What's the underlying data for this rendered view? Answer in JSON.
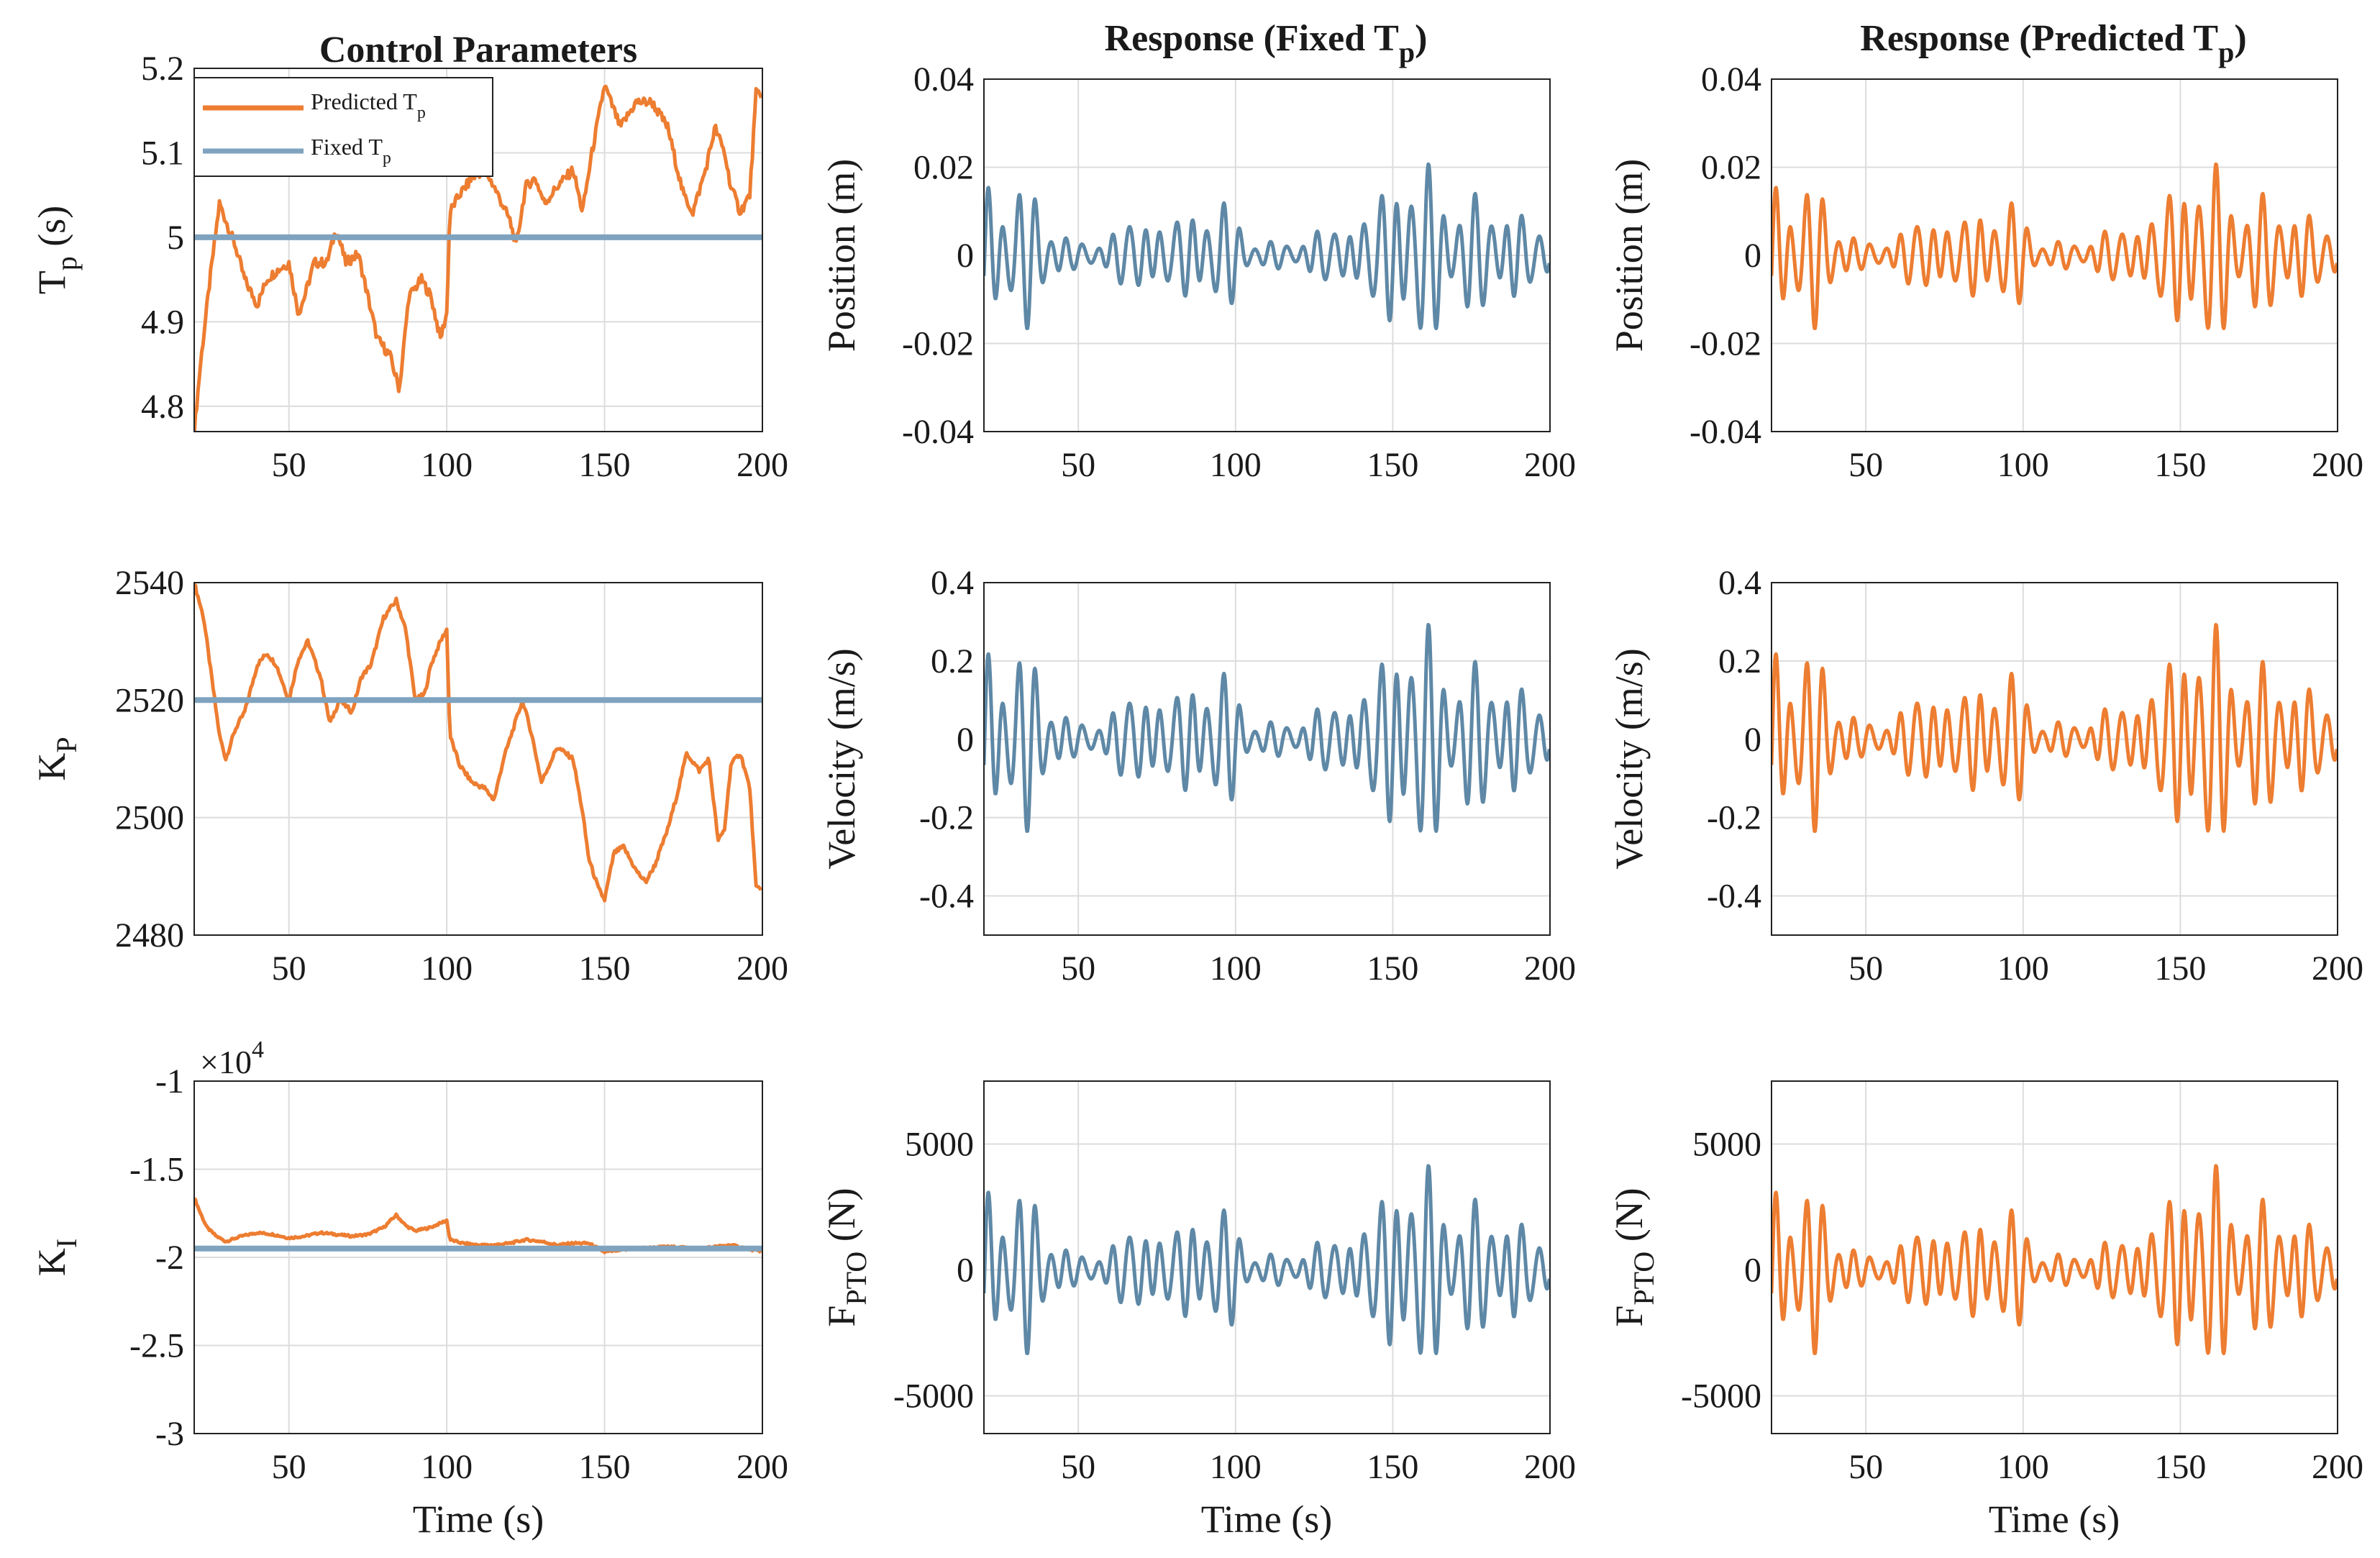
{
  "colors": {
    "predicted": "#ED7D31",
    "fixed": "#5E88A6",
    "fixed_line": "#7FA3BF",
    "grid": "#DCDCDC",
    "axis": "#222222"
  },
  "columns": {
    "col0_title": "Control Parameters",
    "col1_title_main": "Response (Fixed T",
    "col1_title_sub": "p",
    "col1_title_end": ")",
    "col2_title_main": "Response (Predicted T",
    "col2_title_sub": "p",
    "col2_title_end": ")"
  },
  "xlabel": "Time (s)",
  "legend": {
    "predicted_main": "Predicted T",
    "predicted_sub": "p",
    "fixed_main": "Fixed T",
    "fixed_sub": "p"
  },
  "multiplier": {
    "base": "×10",
    "exp": "4"
  },
  "chart_data": [
    {
      "id": "tp",
      "type": "line",
      "ylabel_main": "T",
      "ylabel_sub": "p",
      "ylabel_rest": " (s)",
      "xlim": [
        20,
        200
      ],
      "ylim": [
        4.77,
        5.2
      ],
      "yticks": [
        "4.8",
        "4.9",
        "5",
        "5.1",
        "5.2"
      ],
      "ytick_values": [
        4.8,
        4.9,
        5.0,
        5.1,
        5.2
      ],
      "xticks": [
        "50",
        "100",
        "150",
        "200"
      ],
      "xtick_values": [
        50,
        100,
        150,
        200
      ],
      "series": [
        {
          "name": "Predicted Tp",
          "color": "predicted",
          "amp_noise": 0.006,
          "x": [
            20,
            22,
            25,
            28,
            30,
            33,
            36,
            40,
            43,
            46,
            50,
            53,
            55,
            58,
            62,
            65,
            68,
            72,
            75,
            78,
            82,
            85,
            88,
            92,
            95,
            98,
            100,
            101,
            104,
            108,
            112,
            115,
            120,
            122,
            125,
            128,
            131,
            135,
            140,
            143,
            146,
            150,
            155,
            160,
            165,
            170,
            175,
            178,
            182,
            185,
            188,
            190,
            193,
            196,
            198,
            200
          ],
          "y": [
            4.77,
            4.85,
            4.95,
            5.04,
            5.02,
            4.99,
            4.95,
            4.92,
            4.95,
            4.96,
            4.97,
            4.91,
            4.93,
            4.97,
            4.97,
            5.01,
            4.97,
            4.98,
            4.93,
            4.88,
            4.86,
            4.82,
            4.93,
            4.95,
            4.93,
            4.88,
            4.91,
            5.03,
            5.05,
            5.07,
            5.08,
            5.06,
            5.02,
            4.99,
            5.06,
            5.07,
            5.04,
            5.06,
            5.08,
            5.03,
            5.1,
            5.18,
            5.13,
            5.16,
            5.16,
            5.13,
            5.05,
            5.03,
            5.08,
            5.13,
            5.1,
            5.06,
            5.03,
            5.05,
            5.17,
            5.17
          ]
        },
        {
          "name": "Fixed Tp",
          "color": "fixed_line",
          "x": [
            20,
            200
          ],
          "y": [
            5.0,
            5.0
          ]
        }
      ]
    },
    {
      "id": "kp",
      "type": "line",
      "ylabel_main": "K",
      "ylabel_sub": "P",
      "ylabel_rest": "",
      "xlim": [
        20,
        200
      ],
      "ylim": [
        2480,
        2540
      ],
      "yticks": [
        "2480",
        "2500",
        "2520",
        "2540"
      ],
      "ytick_values": [
        2480,
        2500,
        2520,
        2540
      ],
      "xticks": [
        "50",
        "100",
        "150",
        "200"
      ],
      "xtick_values": [
        50,
        100,
        150,
        200
      ],
      "series": [
        {
          "name": "Predicted Tp",
          "color": "predicted",
          "amp_noise": 0.4,
          "x": [
            20,
            23,
            26,
            28,
            30,
            33,
            36,
            40,
            43,
            46,
            50,
            53,
            56,
            60,
            63,
            66,
            70,
            73,
            76,
            80,
            84,
            87,
            90,
            93,
            95,
            98,
            100,
            101,
            104,
            108,
            112,
            115,
            118,
            121,
            124,
            127,
            130,
            135,
            140,
            143,
            145,
            148,
            150,
            153,
            156,
            160,
            163,
            166,
            170,
            173,
            176,
            180,
            183,
            186,
            188,
            190,
            193,
            196,
            198,
            200
          ],
          "y": [
            2540,
            2534,
            2522,
            2514,
            2510,
            2515,
            2518,
            2526,
            2528,
            2526,
            2520,
            2527,
            2530,
            2524,
            2516,
            2520,
            2518,
            2524,
            2526,
            2534,
            2537,
            2532,
            2520,
            2521,
            2526,
            2530,
            2532,
            2514,
            2509,
            2506,
            2505,
            2503,
            2510,
            2515,
            2520,
            2514,
            2506,
            2512,
            2510,
            2501,
            2493,
            2488,
            2486,
            2494,
            2495,
            2491,
            2489,
            2492,
            2498,
            2504,
            2511,
            2508,
            2510,
            2496,
            2498,
            2509,
            2511,
            2505,
            2488,
            2488
          ]
        },
        {
          "name": "Fixed Tp",
          "color": "fixed_line",
          "x": [
            20,
            200
          ],
          "y": [
            2520,
            2520
          ]
        }
      ]
    },
    {
      "id": "ki",
      "type": "line",
      "ylabel_main": "K",
      "ylabel_sub": "I",
      "ylabel_rest": "",
      "xlim": [
        20,
        200
      ],
      "ylim": [
        -3,
        -1
      ],
      "yticks": [
        "-3",
        "-2.5",
        "-2",
        "-1.5",
        "-1"
      ],
      "ytick_values": [
        -3,
        -2.5,
        -2,
        -1.5,
        -1
      ],
      "xticks": [
        "50",
        "100",
        "150",
        "200"
      ],
      "xtick_values": [
        50,
        100,
        150,
        200
      ],
      "series": [
        {
          "name": "Predicted Tp",
          "color": "predicted",
          "amp_noise": 0.006,
          "x": [
            20,
            22,
            24,
            27,
            30,
            35,
            40,
            45,
            50,
            55,
            60,
            65,
            70,
            75,
            80,
            84,
            87,
            90,
            95,
            100,
            101,
            105,
            110,
            115,
            120,
            125,
            130,
            135,
            140,
            145,
            150,
            155,
            160,
            170,
            180,
            190,
            195,
            200
          ],
          "y": [
            -1.66,
            -1.75,
            -1.83,
            -1.88,
            -1.91,
            -1.88,
            -1.86,
            -1.87,
            -1.89,
            -1.88,
            -1.86,
            -1.87,
            -1.88,
            -1.87,
            -1.83,
            -1.76,
            -1.82,
            -1.85,
            -1.83,
            -1.79,
            -1.9,
            -1.92,
            -1.93,
            -1.93,
            -1.92,
            -1.9,
            -1.91,
            -1.93,
            -1.92,
            -1.92,
            -1.97,
            -1.96,
            -1.95,
            -1.94,
            -1.95,
            -1.93,
            -1.95,
            -1.97
          ]
        },
        {
          "name": "Fixed Tp",
          "color": "fixed_line",
          "x": [
            20,
            200
          ],
          "y": [
            -1.95,
            -1.95
          ]
        }
      ]
    },
    {
      "id": "pos_fixed",
      "type": "line",
      "ylabel_main": "Position (m)",
      "ylabel_sub": "",
      "ylabel_rest": "",
      "xlim": [
        20,
        200
      ],
      "ylim": [
        -0.04,
        0.04
      ],
      "yticks": [
        "-0.04",
        "-0.02",
        "0",
        "0.02",
        "0.04"
      ],
      "ytick_values": [
        -0.04,
        -0.02,
        0,
        0.02,
        0.04
      ],
      "xticks": [
        "50",
        "100",
        "150",
        "200"
      ],
      "xtick_values": [
        50,
        100,
        150,
        200
      ],
      "series": [
        {
          "name": "Position",
          "color": "fixed",
          "signal": "wave",
          "amp": 0.0205
        }
      ]
    },
    {
      "id": "vel_fixed",
      "type": "line",
      "ylabel_main": "Velocity (m/s)",
      "ylabel_sub": "",
      "ylabel_rest": "",
      "xlim": [
        20,
        200
      ],
      "ylim": [
        -0.5,
        0.4
      ],
      "yticks": [
        "-0.4",
        "-0.2",
        "0",
        "0.2",
        "0.4"
      ],
      "ytick_values": [
        -0.4,
        -0.2,
        0,
        0.2,
        0.4
      ],
      "xticks": [
        "50",
        "100",
        "150",
        "200"
      ],
      "xtick_values": [
        50,
        100,
        150,
        200
      ],
      "series": [
        {
          "name": "Velocity",
          "color": "fixed",
          "signal": "wave",
          "amp": 0.29
        }
      ]
    },
    {
      "id": "f_fixed",
      "type": "line",
      "ylabel_main": "F",
      "ylabel_sub": "PTO",
      "ylabel_rest": " (N)",
      "xlim": [
        20,
        200
      ],
      "ylim": [
        -6500,
        7500
      ],
      "yticks": [
        "-5000",
        "0",
        "5000"
      ],
      "ytick_values": [
        -5000,
        0,
        5000
      ],
      "xticks": [
        "50",
        "100",
        "150",
        "200"
      ],
      "xtick_values": [
        50,
        100,
        150,
        200
      ],
      "series": [
        {
          "name": "F_PTO",
          "color": "fixed",
          "signal": "wave",
          "amp": 4100
        }
      ]
    },
    {
      "id": "pos_pred",
      "type": "line",
      "ylabel_main": "Position (m)",
      "ylabel_sub": "",
      "ylabel_rest": "",
      "xlim": [
        20,
        200
      ],
      "ylim": [
        -0.04,
        0.04
      ],
      "yticks": [
        "-0.04",
        "-0.02",
        "0",
        "0.02",
        "0.04"
      ],
      "ytick_values": [
        -0.04,
        -0.02,
        0,
        0.02,
        0.04
      ],
      "xticks": [
        "50",
        "100",
        "150",
        "200"
      ],
      "xtick_values": [
        50,
        100,
        150,
        200
      ],
      "series": [
        {
          "name": "Position",
          "color": "predicted",
          "signal": "wave",
          "amp": 0.0205
        }
      ]
    },
    {
      "id": "vel_pred",
      "type": "line",
      "ylabel_main": "Velocity (m/s)",
      "ylabel_sub": "",
      "ylabel_rest": "",
      "xlim": [
        20,
        200
      ],
      "ylim": [
        -0.5,
        0.4
      ],
      "yticks": [
        "-0.4",
        "-0.2",
        "0",
        "0.2",
        "0.4"
      ],
      "ytick_values": [
        -0.4,
        -0.2,
        0,
        0.2,
        0.4
      ],
      "xticks": [
        "50",
        "100",
        "150",
        "200"
      ],
      "xtick_values": [
        50,
        100,
        150,
        200
      ],
      "series": [
        {
          "name": "Velocity",
          "color": "predicted",
          "signal": "wave",
          "amp": 0.29
        }
      ]
    },
    {
      "id": "f_pred",
      "type": "line",
      "ylabel_main": "F",
      "ylabel_sub": "PTO",
      "ylabel_rest": " (N)",
      "xlim": [
        20,
        200
      ],
      "ylim": [
        -6500,
        7500
      ],
      "yticks": [
        "-5000",
        "0",
        "5000"
      ],
      "ytick_values": [
        -5000,
        0,
        5000
      ],
      "xticks": [
        "50",
        "100",
        "150",
        "200"
      ],
      "xtick_values": [
        50,
        100,
        150,
        200
      ],
      "series": [
        {
          "name": "F_PTO",
          "color": "predicted",
          "signal": "wave",
          "amp": 4100
        }
      ]
    }
  ]
}
